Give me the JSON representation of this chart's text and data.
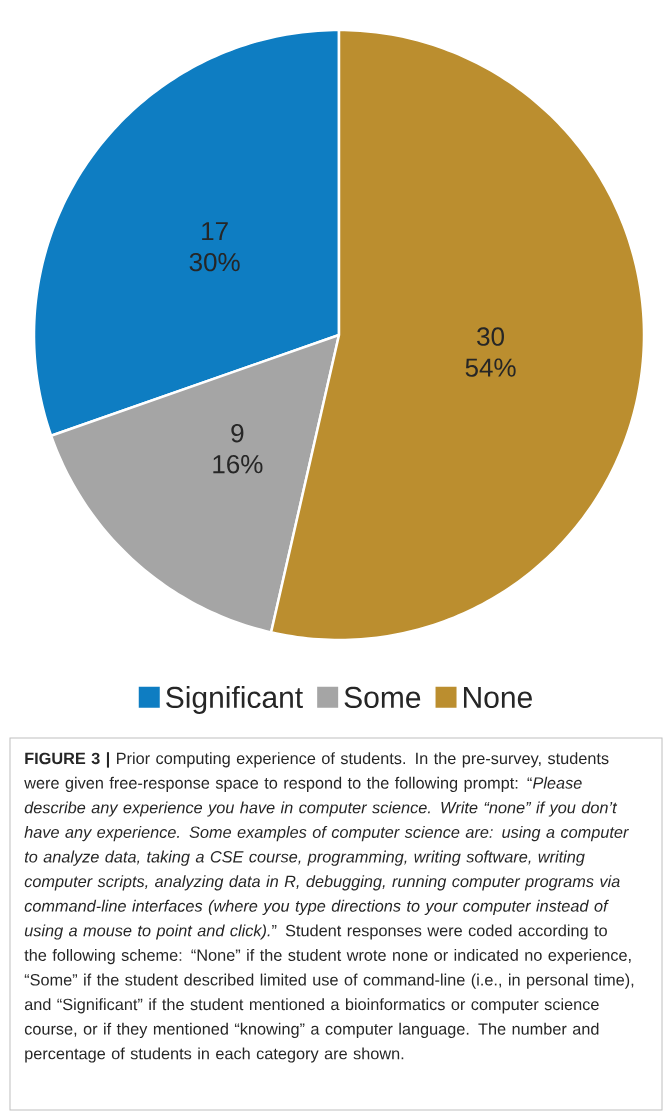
{
  "chart_data": {
    "type": "pie",
    "categories": [
      "Significant",
      "Some",
      "None"
    ],
    "values": [
      17,
      9,
      30
    ],
    "colors": [
      "#0e7dc2",
      "#a5a5a5",
      "#bb8e2f"
    ],
    "value_labels": [
      "17 30%",
      "9 16%",
      "30 54%"
    ],
    "legend": "bottom",
    "annotations": [
      "**FIGURE 3 |** Prior computing experience of students. In the pre-survey, students were given free-response space to respond to the following prompt: “*Please describe any experience you have in computer science. Write “none” if you don’t have any experience. Some examples of computer science are: using a computer to analyze data, taking a CSE course, programming, writing software, writing computer scripts, analyzing data in R, debugging, running computer programs via command-line interfaces (where you type directions to your computer instead of using a mouse to point and click).*” Student responses were coded according to the following scheme: “None” if the student wrote none or indicated no experience, “Some” if the student described limited use of command-line (i.e., in personal time), and “Significant” if the student mentioned a bioinformatics or computer science course, or if they mentioned “knowing” a computer language. The number and percentage of students in each category are shown."
    ]
  }
}
